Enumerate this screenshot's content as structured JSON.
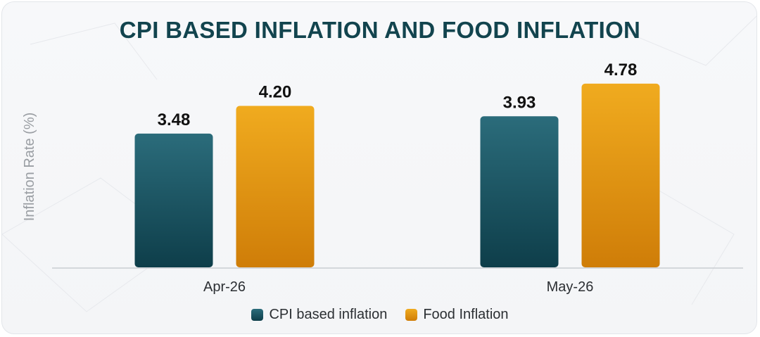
{
  "chart_data": {
    "type": "bar",
    "title": "CPI BASED INFLATION AND FOOD INFLATION",
    "ylabel": "Inflation Rate (%)",
    "xlabel": "",
    "categories": [
      "Apr-26",
      "May-26"
    ],
    "series": [
      {
        "name": "CPI based inflation",
        "values": [
          3.48,
          3.93
        ],
        "labels": [
          "3.48",
          "3.93"
        ],
        "color": "#1f5a68"
      },
      {
        "name": "Food Inflation",
        "values": [
          4.2,
          4.78
        ],
        "labels": [
          "4.20",
          "4.78"
        ],
        "color": "#e39a16"
      }
    ],
    "ylim": [
      0,
      5.4
    ],
    "grid": false,
    "legend_position": "bottom"
  },
  "colors": {
    "title": "#12444e",
    "cpi_top": "#2b6c7b",
    "cpi_bottom": "#0e3e4a",
    "food_top": "#f0ab1f",
    "food_bottom": "#cf7d08"
  }
}
